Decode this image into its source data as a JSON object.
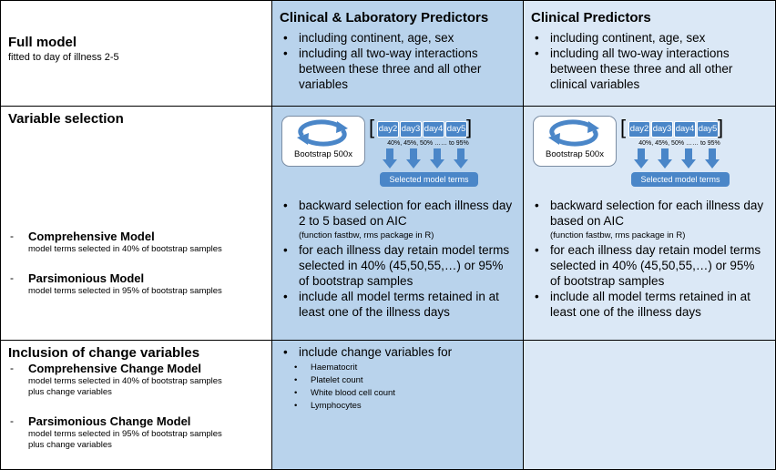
{
  "rows": {
    "full": {
      "title": "Full model",
      "subtitle": "fitted to day of illness 2-5",
      "cl": {
        "header": "Clinical & Laboratory Predictors",
        "bullets": [
          "including continent, age, sex",
          "including all two-way interactions between these three and all other variables"
        ]
      },
      "c": {
        "header": "Clinical Predictors",
        "bullets": [
          "including continent, age, sex",
          "including all two-way interactions between these three and all other clinical variables"
        ]
      }
    },
    "varsel": {
      "title": "Variable selection",
      "models": [
        {
          "dash": "-",
          "name": "Comprehensive Model",
          "desc": "model terms selected in 40% of bootstrap samples"
        },
        {
          "dash": "-",
          "name": "Parsimonious Model",
          "desc": "model terms selected in 95% of bootstrap samples"
        }
      ],
      "diagram": {
        "bootstrap_label": "Bootstrap 500x",
        "days": [
          "day2",
          "day3",
          "day4",
          "day5"
        ],
        "percentages": "40%, 45%, 50% …… to 95%",
        "selected_label": "Selected model terms",
        "bracket_open": "[",
        "bracket_close": "]",
        "arrow_color": "#4a86c8",
        "cycle_icon": "refresh-cycle-icon"
      },
      "cl": {
        "b1_main": "backward selection for each illness day 2 to 5 based on AIC",
        "b1_note": "(function fastbw, rms package in R)",
        "b2": "for each illness day retain model terms selected in 40% (45,50,55,…) or 95% of bootstrap samples",
        "b3": "include all model terms retained in at least one of the illness days"
      },
      "c": {
        "b1_main": "backward selection for each illness day based on AIC",
        "b1_note": "(function fastbw, rms package in R)",
        "b2": "for each illness day retain model terms selected in 40% (45,50,55,…) or 95% of bootstrap samples",
        "b3": "include all model terms retained in at least one of the illness days"
      }
    },
    "change": {
      "title": "Inclusion of change variables",
      "models": [
        {
          "dash": "-",
          "name": "Comprehensive Change Model",
          "desc1": "model terms selected in 40% of bootstrap samples",
          "desc2": "plus change variables"
        },
        {
          "dash": "-",
          "name": "Parsimonious Change Model",
          "desc1": "model terms selected in 95% of bootstrap samples",
          "desc2": "plus change variables"
        }
      ],
      "cl": {
        "bullet": "include change variables for",
        "items": [
          "Haematocrit",
          "Platelet count",
          "White blood cell count",
          "Lymphocytes"
        ]
      }
    }
  },
  "colors": {
    "mid_column": "#b9d3ec",
    "right_column": "#dbe8f6",
    "accent": "#4a86c8"
  }
}
